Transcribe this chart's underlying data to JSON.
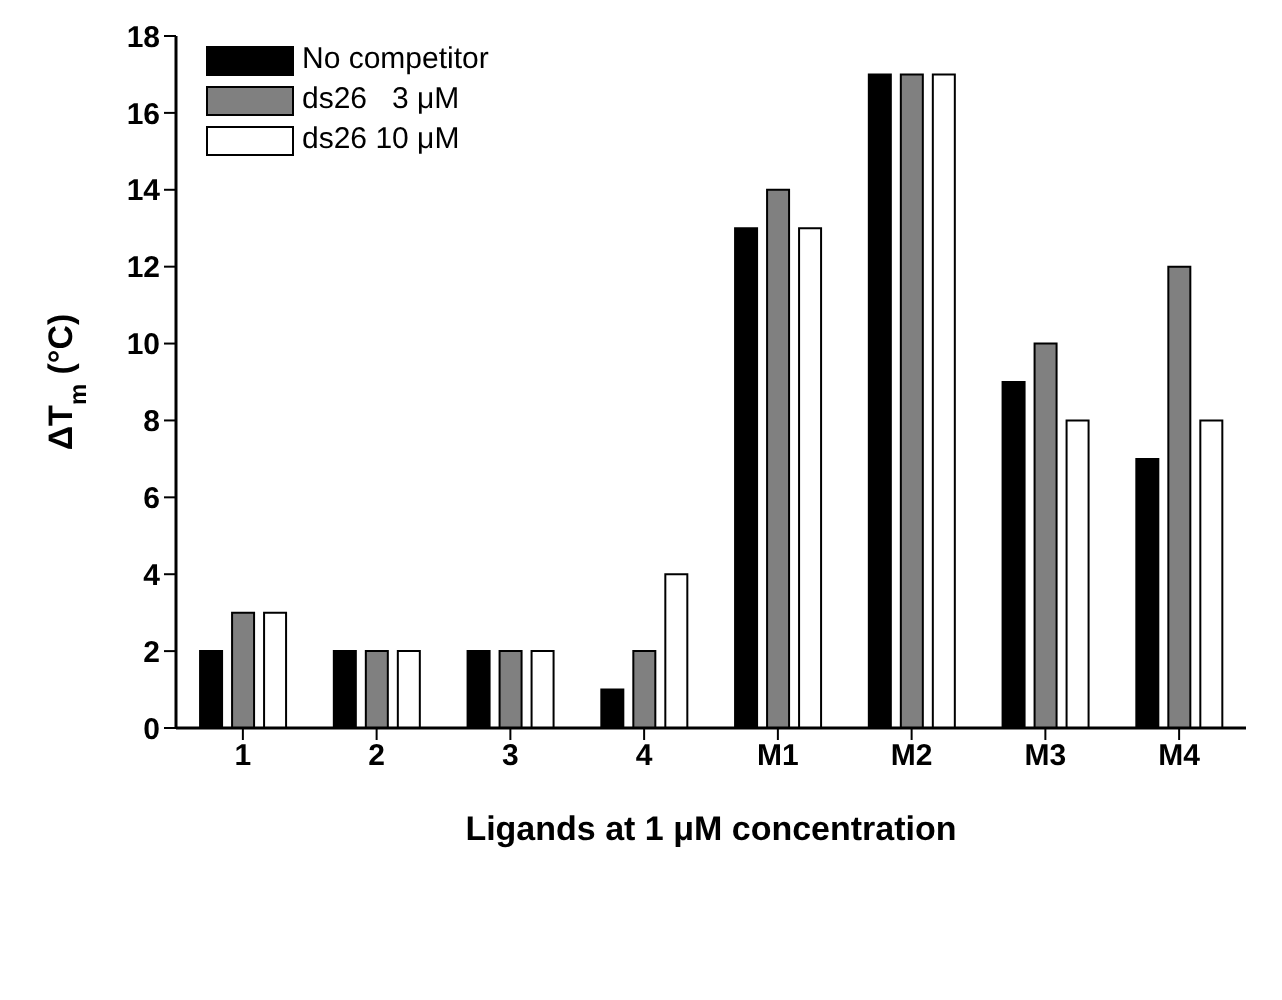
{
  "chart_data": {
    "type": "bar",
    "xlabel": "Ligands at 1 μM concentration",
    "ylabel": "ΔT$_{m}$ (°C)",
    "categories": [
      "1",
      "2",
      "3",
      "4",
      "M1",
      "M2",
      "M3",
      "M4"
    ],
    "series": [
      {
        "name": "No competitor",
        "color": "#000000",
        "values": [
          2,
          2,
          2,
          1,
          13,
          17,
          9,
          7
        ]
      },
      {
        "name": "ds26   3 μM",
        "color": "#808080",
        "values": [
          3,
          2,
          2,
          2,
          14,
          17,
          10,
          12
        ]
      },
      {
        "name": "ds26 10 μM",
        "color": "#ffffff",
        "values": [
          3,
          2,
          2,
          4,
          13,
          17,
          8,
          8
        ]
      }
    ],
    "ylim": [
      0,
      18
    ],
    "yticks": [
      0,
      2,
      4,
      6,
      8,
      10,
      12,
      14,
      16,
      18
    ],
    "grid": false,
    "legend": "top left"
  }
}
